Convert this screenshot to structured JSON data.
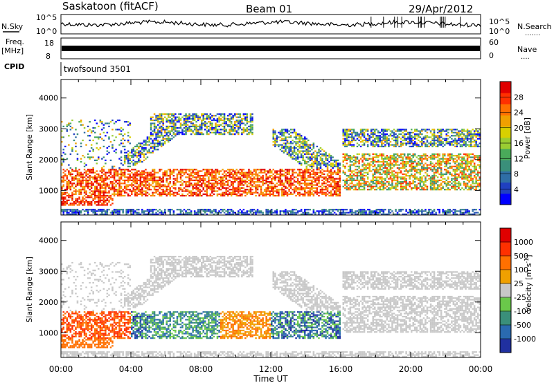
{
  "header": {
    "station": "Saskatoon (fitACF)",
    "beam": "Beam 01",
    "date": "29/Apr/2012"
  },
  "panels": {
    "nsky": {
      "label": "N.Sky",
      "ticks_left": [
        "10^5",
        "10^0"
      ],
      "ticks_right": [
        "10^5",
        "10^0"
      ],
      "right_label": "N.Search",
      "right_dots": "......."
    },
    "freq": {
      "label_line1": "Freq.",
      "label_line2": "[MHz]",
      "ticks_left": [
        "18",
        "8"
      ],
      "ticks_right": [
        "60",
        "0"
      ],
      "right_label": "Nave",
      "right_dots": "...."
    },
    "cpid": {
      "label": "CPID",
      "value": "twofsound 3501"
    }
  },
  "chart_data": [
    {
      "type": "heatmap",
      "quantity": "Power",
      "ylabel": "Slant Range [km]",
      "ylim": [
        200,
        4600
      ],
      "yticks": [
        "1000",
        "2000",
        "3000",
        "4000"
      ],
      "xlim_hours": [
        0,
        24
      ],
      "colorbar_label": "Power [dB]",
      "colorbar_ticks": [
        "28",
        "24",
        "20",
        "16",
        "12",
        "8",
        "4"
      ],
      "colorbar_colors": [
        "#0000ff",
        "#2040c0",
        "#2f6ea6",
        "#3a8f7a",
        "#4aaa5a",
        "#9acd32",
        "#d8d000",
        "#f0a000",
        "#ff7000",
        "#ff3000",
        "#e00000"
      ]
    },
    {
      "type": "heatmap",
      "quantity": "Velocity",
      "ylabel": "Slant Range [km]",
      "ylim": [
        200,
        4600
      ],
      "yticks": [
        "1000",
        "2000",
        "3000",
        "4000"
      ],
      "xlim_hours": [
        0,
        24
      ],
      "colorbar_label": "Velocity [m s",
      "colorbar_label_sup": "-1",
      "colorbar_label_end": "]",
      "colorbar_ticks": [
        "1000",
        "500",
        "100",
        "25",
        "-25",
        "-100",
        "-500",
        "-1000"
      ],
      "colorbar_colors": [
        "#2030a0",
        "#2a6ab0",
        "#3a8f7a",
        "#6ac84a",
        "#c8c8c8",
        "#f0a000",
        "#ff7000",
        "#ff3000",
        "#e00000"
      ]
    }
  ],
  "xaxis": {
    "ticks": [
      "00:00",
      "04:00",
      "08:00",
      "12:00",
      "16:00",
      "20:00",
      "00:00"
    ],
    "label": "Time UT"
  }
}
